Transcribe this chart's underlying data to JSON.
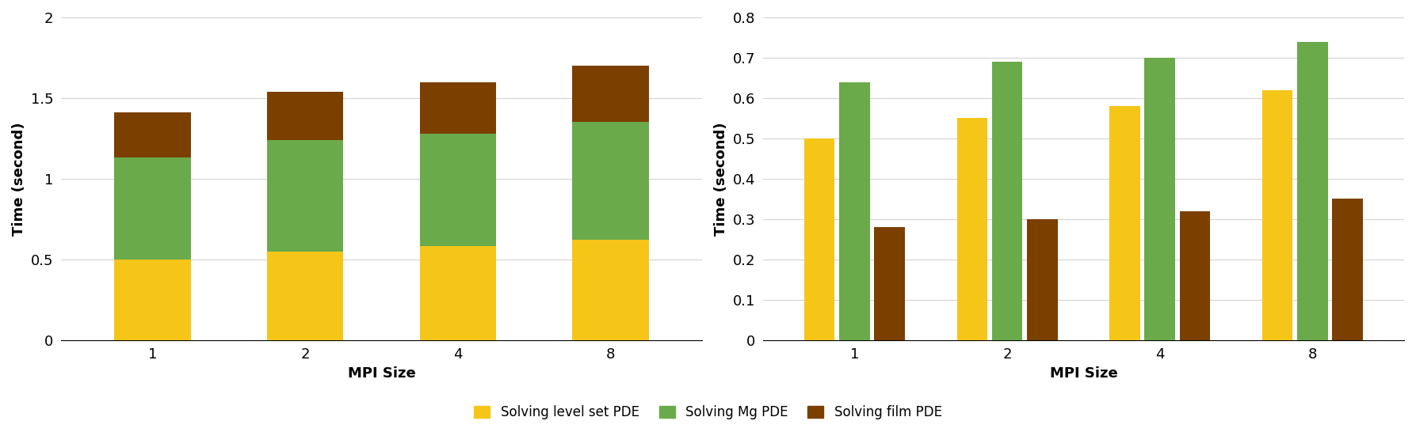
{
  "categories": [
    "1",
    "2",
    "4",
    "8"
  ],
  "left_chart": {
    "level_set": [
      0.5,
      0.55,
      0.58,
      0.62
    ],
    "mg": [
      0.63,
      0.69,
      0.7,
      0.73
    ],
    "film": [
      0.28,
      0.3,
      0.32,
      0.35
    ],
    "ylabel": "Time (second)",
    "xlabel": "MPI Size",
    "ylim": [
      0,
      2.0
    ],
    "yticks": [
      0,
      0.5,
      1.0,
      1.5,
      2.0
    ],
    "yticklabels": [
      "0",
      "0.5",
      "1",
      "1.5",
      "2"
    ]
  },
  "right_chart": {
    "level_set": [
      0.5,
      0.55,
      0.58,
      0.62
    ],
    "mg": [
      0.64,
      0.69,
      0.7,
      0.74
    ],
    "film": [
      0.28,
      0.3,
      0.32,
      0.35
    ],
    "ylabel": "Time (second)",
    "xlabel": "MPI Size",
    "ylim": [
      0,
      0.8
    ],
    "yticks": [
      0,
      0.1,
      0.2,
      0.3,
      0.4,
      0.5,
      0.6,
      0.7,
      0.8
    ],
    "yticklabels": [
      "0",
      "0.1",
      "0.2",
      "0.3",
      "0.4",
      "0.5",
      "0.6",
      "0.7",
      "0.8"
    ]
  },
  "colors": {
    "level_set": "#F5C518",
    "mg": "#6aaa4a",
    "film": "#7B3F00"
  },
  "legend_labels": {
    "level_set": "Solving level set PDE",
    "mg": "Solving Mg PDE",
    "film": "Solving film PDE"
  }
}
